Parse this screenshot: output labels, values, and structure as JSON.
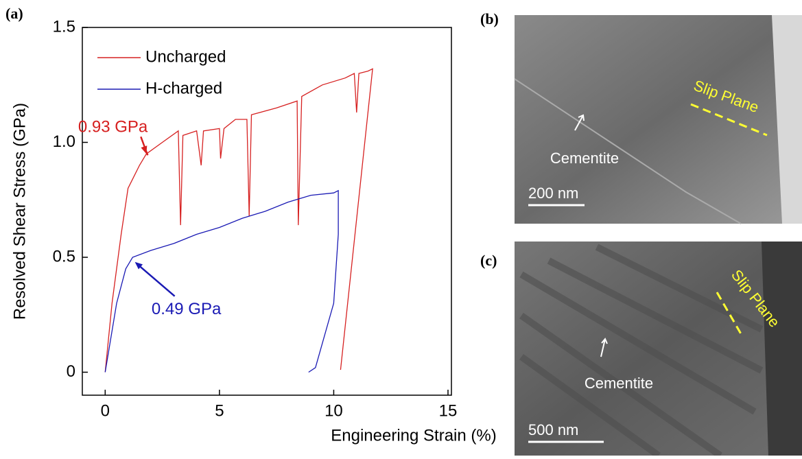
{
  "chart_data": {
    "type": "line",
    "panel_label": "(a)",
    "xlabel": "Engineering Strain (%)",
    "ylabel": "Resolved Shear Stress (GPa)",
    "xlim": [
      -1,
      15.15
    ],
    "ylim": [
      -0.1,
      1.5
    ],
    "xticks": [
      0,
      5,
      10,
      15
    ],
    "yticks": [
      0,
      0.5,
      {
        "value": 1,
        "label": "1.0"
      },
      1.5
    ],
    "grid": false,
    "legend": "upper left",
    "series": [
      {
        "name": "Uncharged",
        "color": "#d62020",
        "x": [
          0,
          0.3,
          0.7,
          1.0,
          1.5,
          1.8,
          2.5,
          3.2,
          3.3,
          3.4,
          4.0,
          4.2,
          4.3,
          5.0,
          5.05,
          5.2,
          5.7,
          6.2,
          6.3,
          6.4,
          7.5,
          8.4,
          8.45,
          8.6,
          9.5,
          10.5,
          10.9,
          11.0,
          11.1,
          11.5,
          11.7,
          10.3
        ],
        "values": [
          0,
          0.3,
          0.6,
          0.8,
          0.9,
          0.95,
          1.0,
          1.05,
          0.64,
          1.03,
          1.05,
          0.9,
          1.05,
          1.06,
          0.93,
          1.06,
          1.1,
          1.1,
          0.68,
          1.12,
          1.15,
          1.18,
          0.64,
          1.2,
          1.25,
          1.28,
          1.3,
          1.13,
          1.3,
          1.31,
          1.32,
          0.01
        ]
      },
      {
        "name": "H-charged",
        "color": "#1a1ab4",
        "x": [
          0,
          0.5,
          0.9,
          1.2,
          2,
          3,
          4,
          5,
          6,
          7,
          8,
          9,
          10,
          10.2,
          10.2,
          10.0,
          9.2,
          8.9
        ],
        "values": [
          0,
          0.3,
          0.45,
          0.5,
          0.53,
          0.56,
          0.6,
          0.63,
          0.67,
          0.7,
          0.74,
          0.77,
          0.78,
          0.79,
          0.6,
          0.3,
          0.02,
          0.0
        ]
      }
    ],
    "annotations": [
      {
        "text": "0.93 GPa",
        "x": 1.8,
        "y": 0.95
      },
      {
        "text": "0.49 GPa",
        "x": 1.3,
        "y": 0.48
      }
    ]
  },
  "panels": [
    {
      "label": "(b)",
      "slip": "Slip Plane",
      "phase": "Cementite",
      "scale": "200 nm"
    },
    {
      "label": "(c)",
      "slip": "Slip Plane",
      "phase": "Cementite",
      "scale": "500 nm"
    }
  ]
}
